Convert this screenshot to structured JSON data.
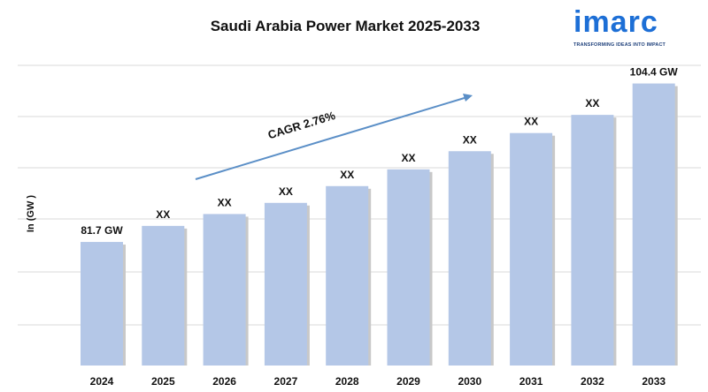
{
  "chart_data": {
    "type": "bar",
    "title": "Saudi Arabia Power Market 2025-2033",
    "xlabel": "",
    "ylabel": "In (GW )",
    "categories": [
      "2024",
      "2025",
      "2026",
      "2027",
      "2028",
      "2029",
      "2030",
      "2031",
      "2032",
      "2033"
    ],
    "values": [
      81.7,
      84.0,
      85.7,
      87.3,
      89.7,
      92.1,
      94.7,
      97.3,
      99.9,
      104.4
    ],
    "data_labels": [
      "81.7 GW",
      "XX",
      "XX",
      "XX",
      "XX",
      "XX",
      "XX",
      "XX",
      "XX",
      "104.4 GW"
    ],
    "ylim": [
      64,
      107
    ],
    "grid": true,
    "bar_color": "#b4c7e7",
    "annotation": {
      "text": "CAGR 2.76%",
      "arrow_color": "#5b8fc7"
    }
  },
  "logo": {
    "wordmark": "imarc",
    "tagline": "TRANSFORMING IDEAS INTO IMPACT",
    "color": "#1d6fd6"
  }
}
